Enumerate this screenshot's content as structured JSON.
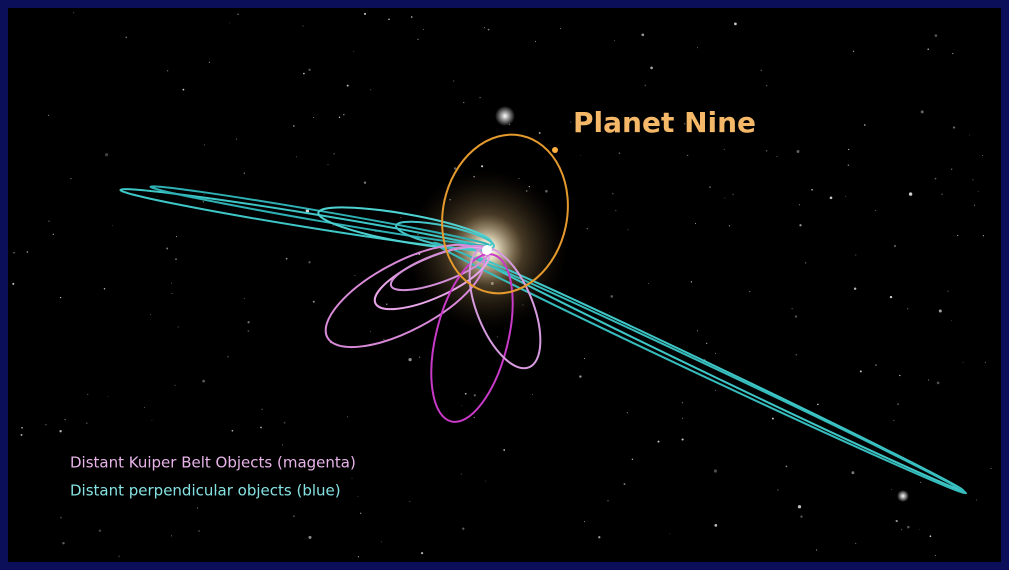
{
  "title": "Planet Nine",
  "legend": {
    "items": [
      "Distant Kuiper Belt Objects (magenta)",
      "Distant perpendicular objects (blue)"
    ]
  }
}
